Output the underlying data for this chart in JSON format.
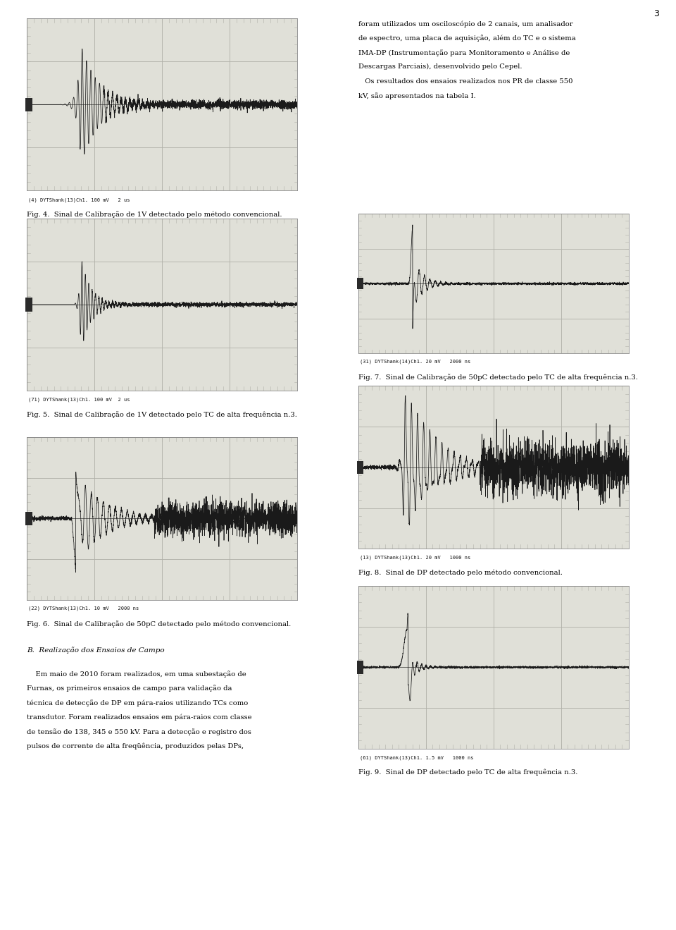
{
  "page_bg": "#ffffff",
  "page_number": "3",
  "right_column_text_lines": [
    "foram utilizados um osciloscópio de 2 canais, um analisador",
    "de espectro, uma placa de aquisição, além do TC e o sistema",
    "IMA-DP (Instrumentação para Monitoramento e Análise de",
    "Descargas Parciais), desenvolvido pelo Cepel.",
    "   Os resultados dos ensaios realizados nos PR de classe 550",
    "kV, são apresentados na tabela I."
  ],
  "fig4_caption": "Fig. 4.  Sinal de Calibração de 1V detectado pelo método convencional.",
  "fig5_caption": "Fig. 5.  Sinal de Calibração de 1V detectado pelo TC de alta frequência n.3.",
  "fig6_caption": "Fig. 6.  Sinal de Calibração de 50pC detectado pelo método convencional.",
  "fig7_caption": "Fig. 7.  Sinal de Calibração de 50pC detectado pelo TC de alta frequência n.3.",
  "fig8_caption": "Fig. 8.  Sinal de DP detectado pelo método convencional.",
  "fig9_caption": "Fig. 9.  Sinal de DP detectado pelo TC de alta frequência n.3.",
  "sec_b_title": "B.  Realização dos Ensaios de Campo",
  "sec_b_lines": [
    "    Em maio de 2010 foram realizados, em uma subestação de",
    "Furnas, os primeiros ensaios de campo para validação da",
    "técnica de detecção de DP em pára-raios utilizando TCs como",
    "transdutor. Foram realizados ensaios em pára-raios com classe",
    "de tensão de 138, 345 e 550 kV. Para a detecção e registro dos",
    "pulsos de corrente de alta freqüência, produzidos pelas DPs,"
  ],
  "fig4_label": "(4) DYTShank(13)Ch1. 100 mV   2 us",
  "fig5_label": "(71) DYTShank(13)Ch1. 100 mV  2 us",
  "fig6_label": "(22) DYTShank(13)Ch1. 10 mV   2000 ns",
  "fig7_label": "(31) DYTShank(14)Ch1. 20 mV   2000 ns",
  "fig8_label": "(13) DYTShank(13)Ch1. 20 mV   1000 ns",
  "fig9_label": "(61) DYTShank(13)Ch1. 1.5 mV   1000 ns",
  "osc_bg": "#e0e0d8",
  "osc_grid_color": "#b0b0a8",
  "osc_line_color": "#1a1a1a"
}
